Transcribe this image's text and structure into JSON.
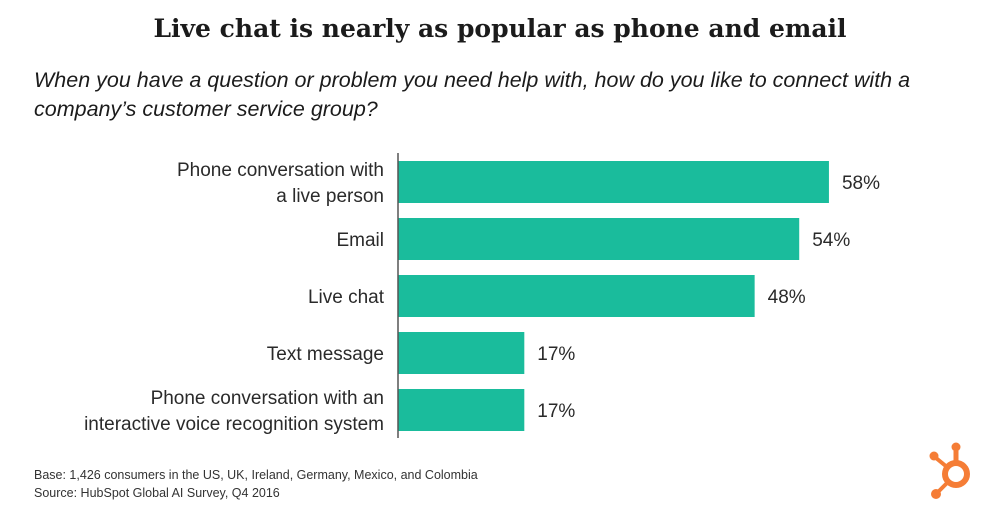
{
  "title": "Live chat is nearly as popular as phone and email",
  "subtitle": "When you have a question or problem you need help with, how do you like to connect with a company’s customer service group?",
  "colors": {
    "bar": "#1ABC9C",
    "axis": "#555555",
    "logo": "#F57D36"
  },
  "chart_data": {
    "type": "bar",
    "orientation": "horizontal",
    "categories": [
      [
        "Phone conversation with",
        "a live person"
      ],
      [
        "Email"
      ],
      [
        "Live chat"
      ],
      [
        "Text message"
      ],
      [
        "Phone conversation with an",
        "interactive voice recognition system"
      ]
    ],
    "values": [
      58,
      54,
      48,
      17,
      17
    ],
    "value_labels": [
      "58%",
      "54%",
      "48%",
      "17%",
      "17%"
    ],
    "unit": "%",
    "xlim": [
      0,
      100
    ],
    "grid": false,
    "legend": "none"
  },
  "footnotes": {
    "base": "Base: 1,426 consumers in the US, UK, Ireland, Germany, Mexico, and Colombia",
    "source": "Source: HubSpot Global AI Survey, Q4 2016"
  },
  "logo": {
    "icon": "hubspot-sprocket-icon"
  }
}
